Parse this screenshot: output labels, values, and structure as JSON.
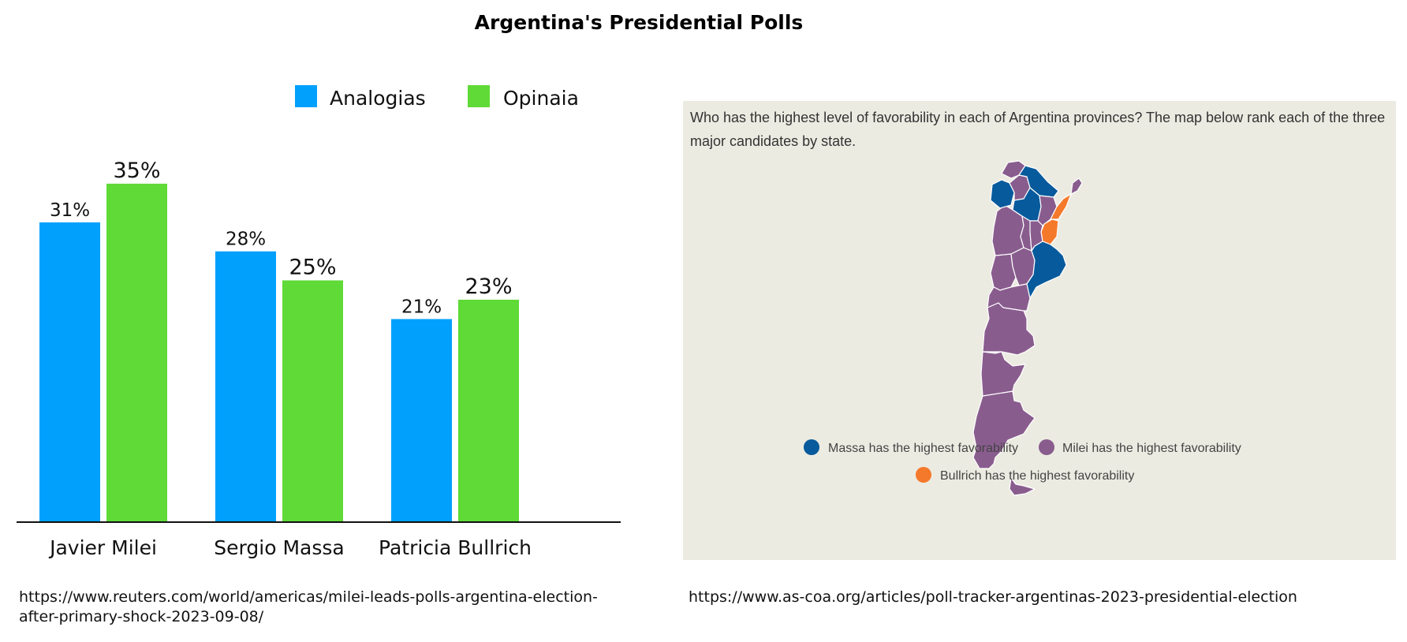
{
  "title": "Argentina's Presidential Polls",
  "chart_data": {
    "type": "bar",
    "categories": [
      "Javier Milei",
      "Sergio Massa",
      "Patricia Bullrich"
    ],
    "series": [
      {
        "name": "Analogias",
        "values": [
          31,
          28,
          21
        ],
        "color": "#02a0fd",
        "labels": [
          "31%",
          "28%",
          "21%"
        ]
      },
      {
        "name": "Opinaia",
        "values": [
          35,
          25,
          23
        ],
        "color": "#5fda37",
        "labels": [
          "35%",
          "25%",
          "23%"
        ]
      }
    ],
    "ylim": [
      0,
      40
    ],
    "grid": false,
    "legend": "top"
  },
  "map": {
    "description": "Who has the highest level of favorability in each of Argentina provinces? The map below rank each of the three major candidates by state.",
    "legend": [
      {
        "label": "Massa has the highest favorability",
        "color": "#075a9c"
      },
      {
        "label": "Milei has the highest favorability",
        "color": "#895c8e"
      },
      {
        "label": "Bullrich has the highest favorability",
        "color": "#f5792b"
      }
    ]
  },
  "sources": {
    "left": "https://www.reuters.com/world/americas/milei-leads-polls-argentina-election-after-primary-shock-2023-09-08/",
    "right": "https://www.as-coa.org/articles/poll-tracker-argentinas-2023-presidential-election"
  }
}
